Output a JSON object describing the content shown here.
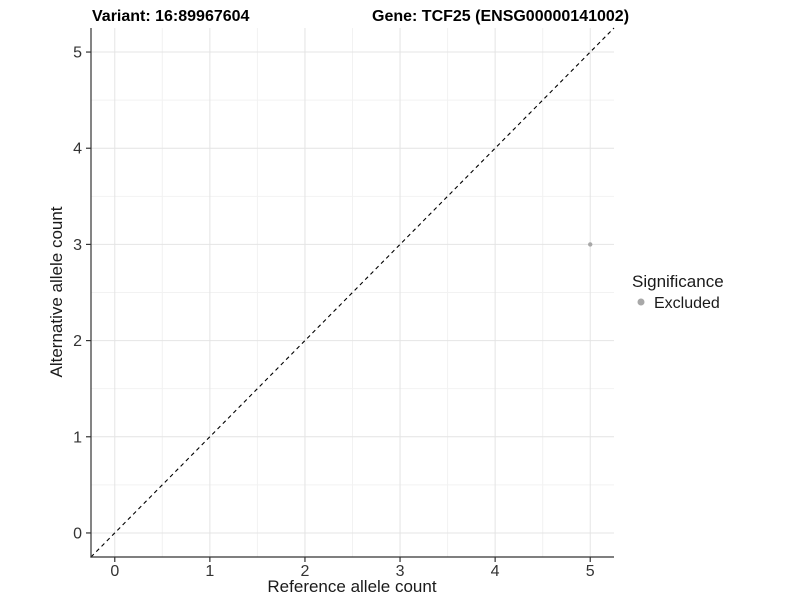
{
  "titles": {
    "variant": "Variant: 16:89967604",
    "gene": "Gene: TCF25 (ENSG00000141002)"
  },
  "chart_data": {
    "type": "scatter",
    "title": "Variant: 16:89967604   Gene: TCF25 (ENSG00000141002)",
    "xlabel": "Reference allele count",
    "ylabel": "Alternative allele count",
    "xlim": [
      -0.25,
      5.25
    ],
    "ylim": [
      -0.25,
      5.25
    ],
    "x_ticks": [
      0,
      1,
      2,
      3,
      4,
      5
    ],
    "y_ticks": [
      0,
      1,
      2,
      3,
      4,
      5
    ],
    "x_minor_ticks": [
      0.5,
      1.5,
      2.5,
      3.5,
      4.5
    ],
    "y_minor_ticks": [
      0.5,
      1.5,
      2.5,
      3.5,
      4.5
    ],
    "grid": true,
    "series": [
      {
        "name": "Excluded",
        "color": "#a8a8a8",
        "points": [
          {
            "x": 5,
            "y": 3
          }
        ]
      }
    ],
    "reference_line": {
      "kind": "identity",
      "slope": 1,
      "intercept": 0,
      "style": "dashed",
      "color": "#000000"
    },
    "legend": {
      "title": "Significance",
      "position": "right",
      "entries": [
        {
          "label": "Excluded",
          "color": "#a8a8a8"
        }
      ]
    }
  },
  "colors": {
    "background": "#ffffff",
    "grid_major": "#e4e4e4",
    "grid_minor": "#f2f2f2",
    "axis_line": "#333333",
    "tick_mark": "#333333",
    "point": "#a8a8a8"
  }
}
